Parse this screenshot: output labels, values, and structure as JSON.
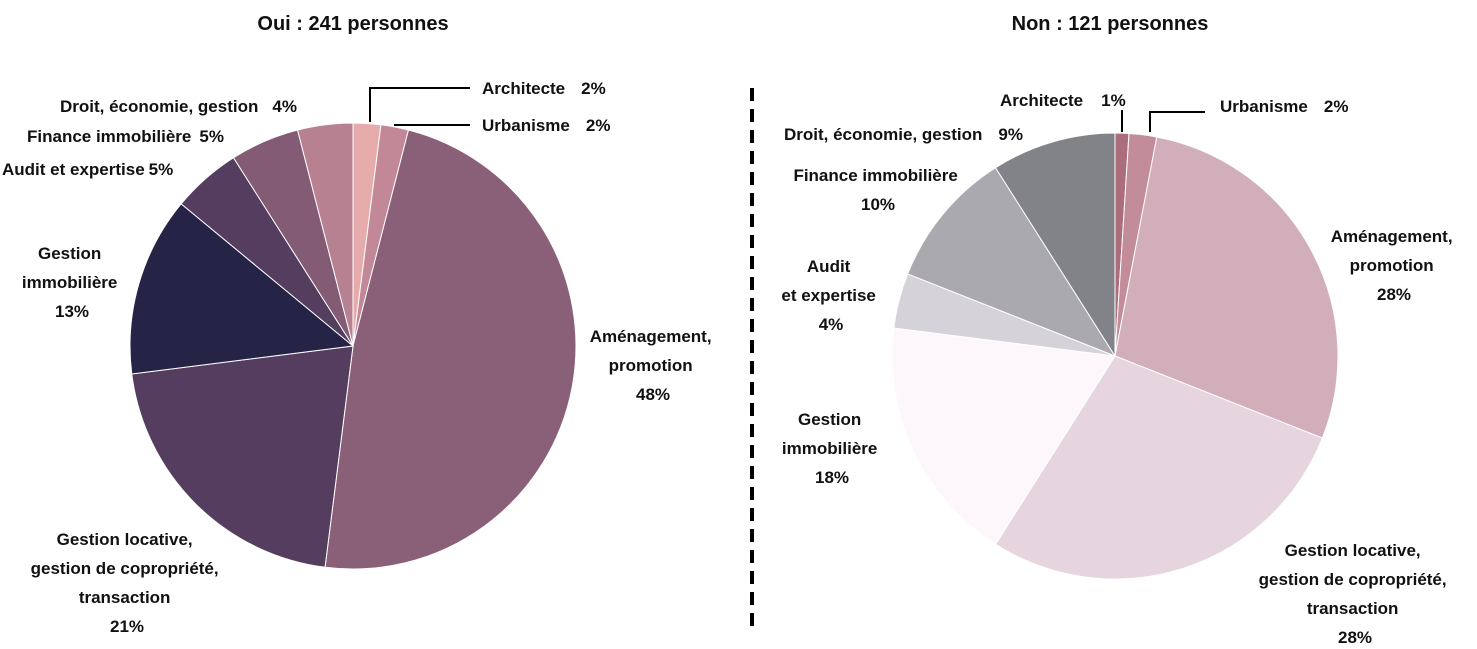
{
  "chart_data": [
    {
      "type": "pie",
      "title": "Oui : 241 personnes",
      "slices": [
        {
          "label": "Architecte",
          "display": "2%",
          "value": 2,
          "color": "#e6acac"
        },
        {
          "label": "Urbanisme",
          "display": "2%",
          "value": 2,
          "color": "#c28898"
        },
        {
          "label": "Aménagement, promotion",
          "display": "48%",
          "value": 48,
          "color": "#8a6079"
        },
        {
          "label": "Gestion locative, gestion de copropriété, transaction",
          "display": "21%",
          "value": 21,
          "color": "#543d5f"
        },
        {
          "label": "Gestion immobilière",
          "display": "13%",
          "value": 13,
          "color": "#252446"
        },
        {
          "label": "Audit et expertise",
          "display": "5%",
          "value": 5,
          "color": "#543d5f"
        },
        {
          "label": "Finance immobilière",
          "display": "5%",
          "value": 5,
          "color": "#835b75"
        },
        {
          "label": "Droit, économie, gestion",
          "display": "4%",
          "value": 4,
          "color": "#b88191"
        }
      ]
    },
    {
      "type": "pie",
      "title": "Non : 121 personnes",
      "slices": [
        {
          "label": "Architecte",
          "display": "1%",
          "value": 1,
          "color": "#ac6e7c"
        },
        {
          "label": "Urbanisme",
          "display": "2%",
          "value": 2,
          "color": "#c28d98"
        },
        {
          "label": "Aménagement, promotion",
          "display": "28%",
          "value": 28,
          "color": "#d2aebb"
        },
        {
          "label": "Gestion locative, gestion de copropriété, transaction",
          "display": "28%",
          "value": 28,
          "color": "#e6d4de"
        },
        {
          "label": "Gestion immobilière",
          "display": "18%",
          "value": 18,
          "color": "#fdf7fb"
        },
        {
          "label": "Audit et expertise",
          "display": "4%",
          "value": 4,
          "color": "#d5d2d9"
        },
        {
          "label": "Finance immobilière",
          "display": "10%",
          "value": 10,
          "color": "#a9a9af"
        },
        {
          "label": "Droit, économie, gestion",
          "display": "9%",
          "value": 9,
          "color": "#818388"
        }
      ]
    }
  ]
}
